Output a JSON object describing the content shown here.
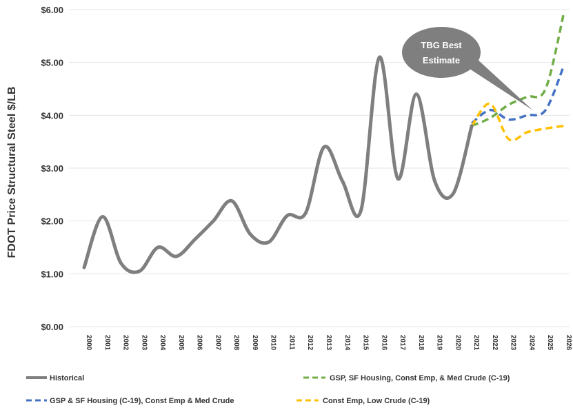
{
  "chart_data": {
    "type": "line",
    "ylabel": "FDOT Price Structural Steel $/LB",
    "ylim": [
      0,
      6
    ],
    "ytick_labels": [
      "$0.00",
      "$1.00",
      "$2.00",
      "$3.00",
      "$4.00",
      "$5.00",
      "$6.00"
    ],
    "y_ticks": [
      0,
      1,
      2,
      3,
      4,
      5,
      6
    ],
    "x": [
      "2000",
      "2001",
      "2002",
      "2003",
      "2004",
      "2005",
      "2006",
      "2007",
      "2008",
      "2009",
      "2010",
      "2011",
      "2012",
      "2013",
      "2014",
      "2015",
      "2016",
      "2017",
      "2018",
      "2019",
      "2020",
      "2021",
      "2022",
      "2023",
      "2024",
      "2025",
      "2026"
    ],
    "grid": "horizontal",
    "legend_position": "bottom",
    "series": [
      {
        "name": "Historical",
        "color": "#7f7f7f",
        "dash": "solid",
        "x": [
          "2000",
          "2001",
          "2002",
          "2003",
          "2004",
          "2005",
          "2006",
          "2007",
          "2008",
          "2009",
          "2010",
          "2011",
          "2012",
          "2013",
          "2014",
          "2015",
          "2016",
          "2017",
          "2018",
          "2019",
          "2020",
          "2021"
        ],
        "values": [
          1.12,
          2.08,
          1.2,
          1.05,
          1.5,
          1.33,
          1.65,
          2.0,
          2.38,
          1.75,
          1.6,
          2.1,
          2.15,
          3.4,
          2.75,
          2.2,
          5.1,
          2.8,
          4.4,
          2.75,
          2.52,
          3.8
        ]
      },
      {
        "name": "GSP, SF Housing, Const Emp, & Med Crude (C-19)",
        "color": "#70ad47",
        "dash": "dashed",
        "x": [
          "2021",
          "2022",
          "2023",
          "2024",
          "2025",
          "2026"
        ],
        "values": [
          3.8,
          3.95,
          4.2,
          4.35,
          4.5,
          5.95
        ]
      },
      {
        "name": "GSP & SF Housing (C-19), Const Emp & Med Crude",
        "color": "#4472c4",
        "dash": "dashed",
        "x": [
          "2021",
          "2022",
          "2023",
          "2024",
          "2025",
          "2026"
        ],
        "values": [
          3.85,
          4.1,
          3.92,
          4.0,
          4.1,
          4.95
        ]
      },
      {
        "name": "Const Emp, Low Crude (C-19)",
        "color": "#ffc000",
        "dash": "dashed",
        "x": [
          "2021",
          "2022",
          "2023",
          "2024",
          "2025",
          "2026"
        ],
        "values": [
          3.8,
          4.22,
          3.55,
          3.68,
          3.75,
          3.8
        ]
      }
    ],
    "annotation": {
      "text_lines": [
        "TBG Best",
        "Estimate"
      ],
      "points_to_x": "2024",
      "points_to_y": 4.1
    }
  }
}
